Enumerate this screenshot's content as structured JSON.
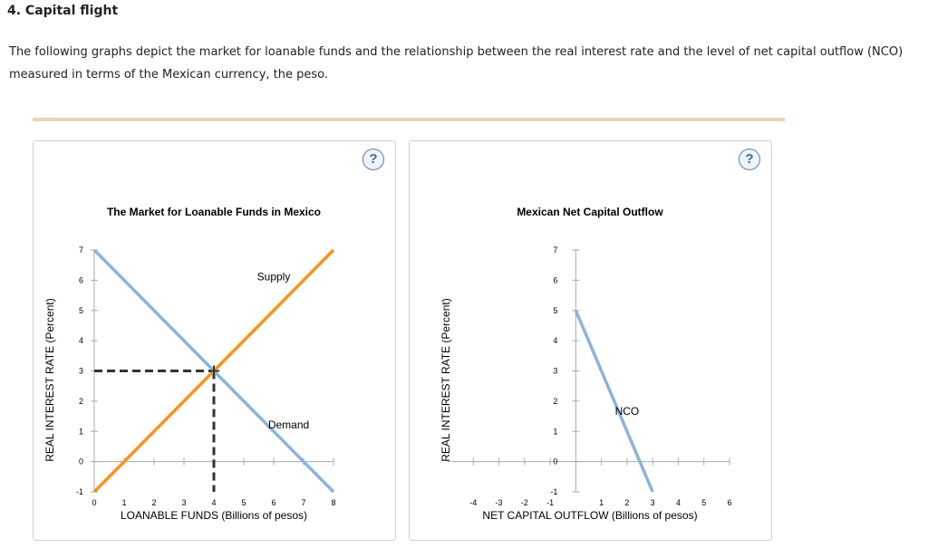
{
  "header": {
    "title": "4. Capital flight",
    "intro": "The following graphs depict the market for loanable funds and the relationship between the real interest rate and the level of net capital outflow (NCO) measured in terms of the Mexican currency, the peso."
  },
  "help_label": "?",
  "colors": {
    "supply": "#f7931e",
    "demand": "#8db3d9",
    "nco": "#8db3d9",
    "dashed": "#333333"
  },
  "chart_data": [
    {
      "type": "line",
      "title": "The Market for Loanable Funds in Mexico",
      "xlabel": "LOANABLE FUNDS (Billions of pesos)",
      "ylabel": "REAL INTEREST RATE (Percent)",
      "xlim": [
        0,
        8
      ],
      "ylim": [
        -1,
        7
      ],
      "xticks": [
        "0",
        "1",
        "2",
        "3",
        "4",
        "5",
        "6",
        "7",
        "8"
      ],
      "yticks": [
        "-1",
        "0",
        "1",
        "2",
        "3",
        "4",
        "5",
        "6",
        "7"
      ],
      "series": [
        {
          "name": "Supply",
          "x": [
            0,
            8
          ],
          "y": [
            -1,
            7
          ]
        },
        {
          "name": "Demand",
          "x": [
            0,
            8
          ],
          "y": [
            7,
            -1
          ]
        }
      ],
      "equilibrium": {
        "x": 4,
        "y": 3
      }
    },
    {
      "type": "line",
      "title": "Mexican Net Capital Outflow",
      "xlabel": "NET CAPITAL OUTFLOW (Billions of pesos)",
      "ylabel": "REAL INTEREST RATE (Percent)",
      "xlim": [
        -5,
        6
      ],
      "ylim": [
        -1,
        7
      ],
      "xticks": [
        "-4",
        "-3",
        "-2",
        "-1",
        "1",
        "2",
        "3",
        "4",
        "5",
        "6"
      ],
      "yticks": [
        "-1",
        "0",
        "1",
        "2",
        "3",
        "4",
        "5",
        "6",
        "7"
      ],
      "series": [
        {
          "name": "NCO",
          "x": [
            0,
            3
          ],
          "y": [
            5,
            -1
          ]
        }
      ]
    }
  ]
}
